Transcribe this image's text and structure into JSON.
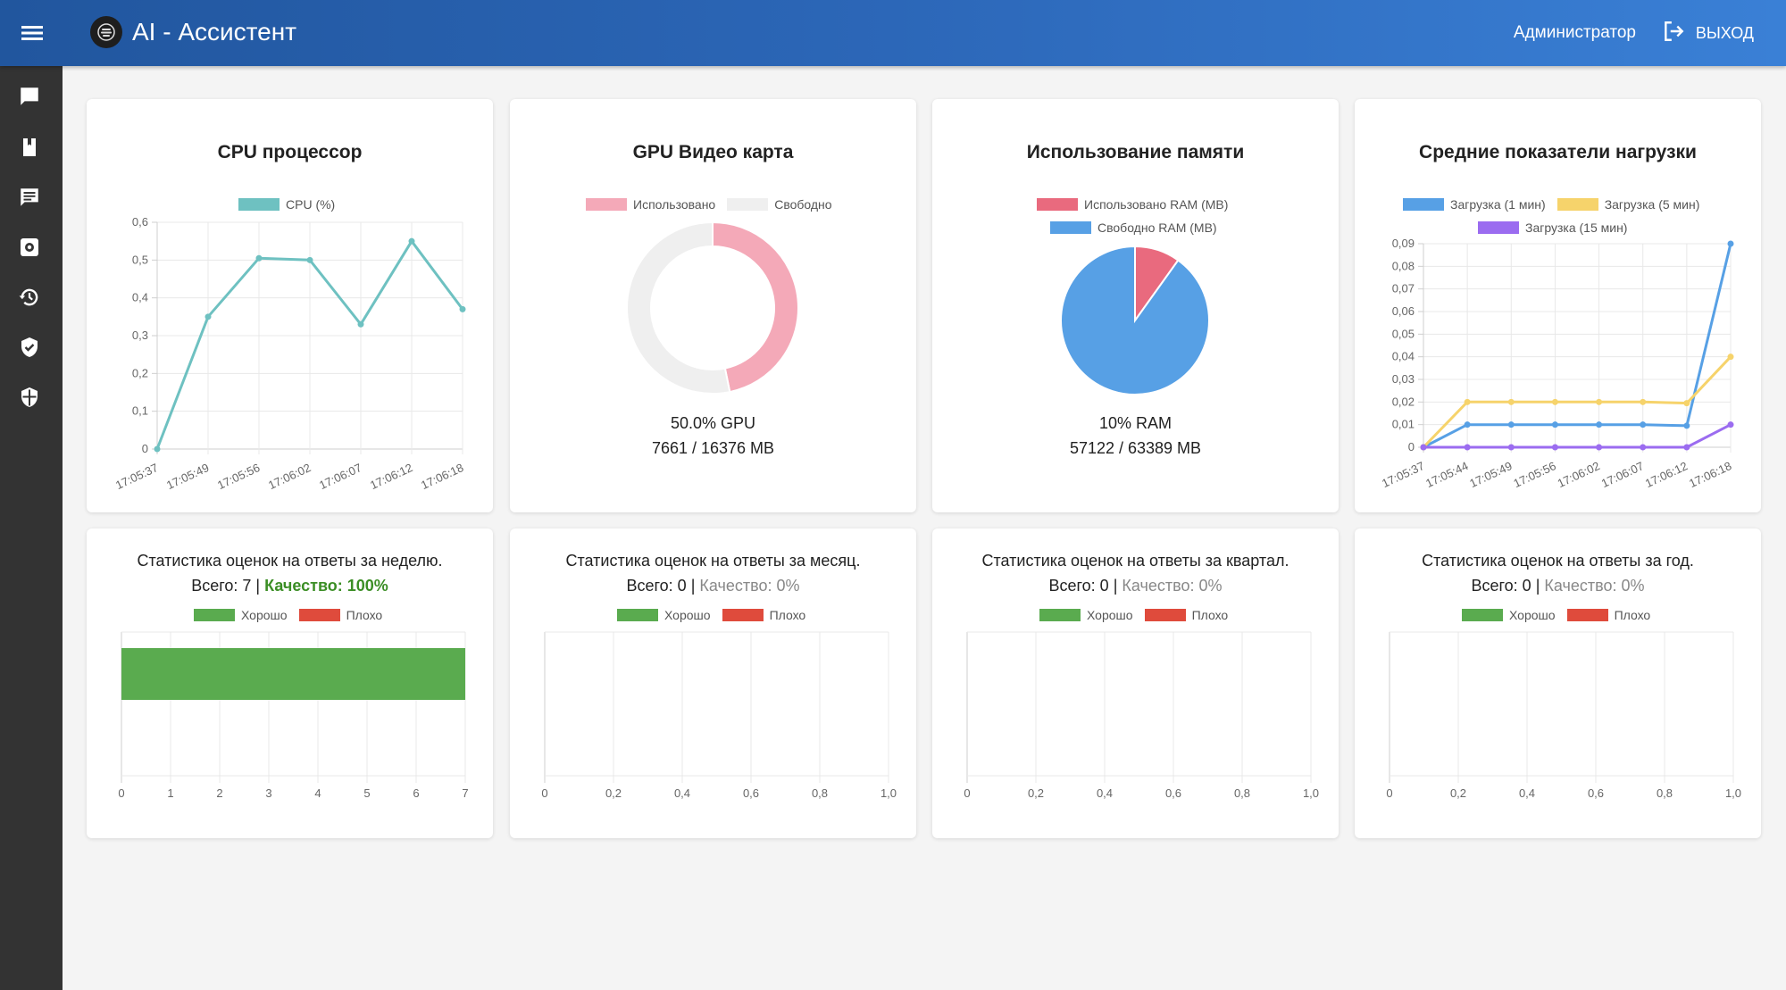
{
  "app": {
    "title": "AI - Ассистент"
  },
  "header": {
    "user_label": "Администратор",
    "logout_label": "ВЫХОД"
  },
  "colors": {
    "header": "#2c67b8",
    "sidebar": "#333333",
    "cpu": "#6ec1c1",
    "gpu_used": "#f4a9b8",
    "gpu_free": "#efefef",
    "ram_used": "#e96a7e",
    "ram_free": "#57a0e5",
    "load1": "#57a0e5",
    "load5": "#f6d36b",
    "load15": "#9b6cf0",
    "good": "#5aab4f",
    "bad": "#df4b3c",
    "quality_good": "#3b8e25"
  },
  "sidebar": {
    "items": [
      {
        "icon": "chat-icon"
      },
      {
        "icon": "book-icon"
      },
      {
        "icon": "message-icon"
      },
      {
        "icon": "settings-icon"
      },
      {
        "icon": "history-icon"
      },
      {
        "icon": "shield-check-icon"
      },
      {
        "icon": "security-shield-icon"
      }
    ]
  },
  "cards": {
    "cpu": {
      "title": "CPU процессор",
      "legend": [
        "CPU (%)"
      ]
    },
    "gpu": {
      "title": "GPU Видео карта",
      "legend": [
        "Использовано",
        "Свободно"
      ],
      "percent_text": "50.0% GPU",
      "memory_text": "7661 / 16376 MB"
    },
    "ram": {
      "title": "Использование памяти",
      "legend": [
        "Использовано RAM (MB)",
        "Свободно RAM (MB)"
      ],
      "percent_text": "10% RAM",
      "memory_text": "57122 / 63389 MB"
    },
    "load": {
      "title": "Средние показатели нагрузки",
      "legend": [
        "Загрузка (1 мин)",
        "Загрузка (5 мин)",
        "Загрузка (15 мин)"
      ]
    }
  },
  "stats": [
    {
      "title": "Статистика оценок на ответы за неделю.",
      "total_label": "Всего: 7",
      "separator": "|",
      "quality_label": "Качество: 100%",
      "quality_status": "good",
      "legend": [
        "Хорошо",
        "Плохо"
      ]
    },
    {
      "title": "Статистика оценок на ответы за месяц.",
      "total_label": "Всего: 0",
      "separator": "|",
      "quality_label": "Качество: 0%",
      "quality_status": "none",
      "legend": [
        "Хорошо",
        "Плохо"
      ]
    },
    {
      "title": "Статистика оценок на ответы за квартал.",
      "total_label": "Всего: 0",
      "separator": "|",
      "quality_label": "Качество: 0%",
      "quality_status": "none",
      "legend": [
        "Хорошо",
        "Плохо"
      ]
    },
    {
      "title": "Статистика оценок на ответы за год.",
      "total_label": "Всего: 0",
      "separator": "|",
      "quality_label": "Качество: 0%",
      "quality_status": "none",
      "legend": [
        "Хорошо",
        "Плохо"
      ]
    }
  ],
  "chart_data": [
    {
      "type": "line",
      "title": "CPU процессор",
      "x": [
        "17:05:37",
        "17:05:49",
        "17:05:56",
        "17:06:02",
        "17:06:07",
        "17:06:12",
        "17:06:18"
      ],
      "series": [
        {
          "name": "CPU (%)",
          "values": [
            0,
            0.35,
            0.505,
            0.5,
            0.33,
            0.55,
            0.37
          ]
        }
      ],
      "ylim": [
        0,
        0.6
      ],
      "yticks": [
        "0",
        "0,1",
        "0,2",
        "0,3",
        "0,4",
        "0,5",
        "0,6"
      ],
      "grid": true,
      "legend": "top"
    },
    {
      "type": "pie",
      "title": "GPU Видео карта",
      "categories": [
        "Использовано",
        "Свободно"
      ],
      "values": [
        7661,
        8715
      ],
      "legend": "top"
    },
    {
      "type": "pie",
      "title": "Использование памяти",
      "categories": [
        "Использовано RAM (MB)",
        "Свободно RAM (MB)"
      ],
      "values": [
        6267,
        57122
      ],
      "legend": "top"
    },
    {
      "type": "line",
      "title": "Средние показатели нагрузки",
      "x": [
        "17:05:37",
        "17:05:44",
        "17:05:49",
        "17:05:56",
        "17:06:02",
        "17:06:07",
        "17:06:12",
        "17:06:18"
      ],
      "series": [
        {
          "name": "Загрузка (1 мин)",
          "values": [
            0,
            0.01,
            0.01,
            0.01,
            0.01,
            0.01,
            0.0095,
            0.09
          ]
        },
        {
          "name": "Загрузка (5 мин)",
          "values": [
            0,
            0.02,
            0.02,
            0.02,
            0.02,
            0.02,
            0.0195,
            0.04
          ]
        },
        {
          "name": "Загрузка (15 мин)",
          "values": [
            0,
            0,
            0,
            0,
            0,
            0,
            0,
            0.01
          ]
        }
      ],
      "ylim": [
        0,
        0.09
      ],
      "yticks": [
        "0",
        "0,01",
        "0,02",
        "0,03",
        "0,04",
        "0,05",
        "0,06",
        "0,07",
        "0,08",
        "0,09"
      ],
      "grid": true,
      "legend": "top"
    },
    {
      "type": "bar",
      "title": "Статистика оценок на ответы за неделю.",
      "orientation": "horizontal",
      "stacked": true,
      "series": [
        {
          "name": "Хорошо",
          "values": [
            7
          ]
        },
        {
          "name": "Плохо",
          "values": [
            0
          ]
        }
      ],
      "xlim": [
        0,
        7
      ],
      "xticks": [
        "0",
        "1",
        "2",
        "3",
        "4",
        "5",
        "6",
        "7"
      ],
      "grid": true,
      "legend": "top"
    },
    {
      "type": "bar",
      "title": "Статистика оценок на ответы за месяц.",
      "orientation": "horizontal",
      "stacked": true,
      "series": [
        {
          "name": "Хорошо",
          "values": [
            0
          ]
        },
        {
          "name": "Плохо",
          "values": [
            0
          ]
        }
      ],
      "xlim": [
        0,
        1
      ],
      "xticks": [
        "0",
        "0,2",
        "0,4",
        "0,6",
        "0,8",
        "1,0"
      ],
      "grid": true,
      "legend": "top"
    },
    {
      "type": "bar",
      "title": "Статистика оценок на ответы за квартал.",
      "orientation": "horizontal",
      "stacked": true,
      "series": [
        {
          "name": "Хорошо",
          "values": [
            0
          ]
        },
        {
          "name": "Плохо",
          "values": [
            0
          ]
        }
      ],
      "xlim": [
        0,
        1
      ],
      "xticks": [
        "0",
        "0,2",
        "0,4",
        "0,6",
        "0,8",
        "1,0"
      ],
      "grid": true,
      "legend": "top"
    },
    {
      "type": "bar",
      "title": "Статистика оценок на ответы за год.",
      "orientation": "horizontal",
      "stacked": true,
      "series": [
        {
          "name": "Хорошо",
          "values": [
            0
          ]
        },
        {
          "name": "Плохо",
          "values": [
            0
          ]
        }
      ],
      "xlim": [
        0,
        1
      ],
      "xticks": [
        "0",
        "0,2",
        "0,4",
        "0,6",
        "0,8",
        "1,0"
      ],
      "grid": true,
      "legend": "top"
    }
  ]
}
